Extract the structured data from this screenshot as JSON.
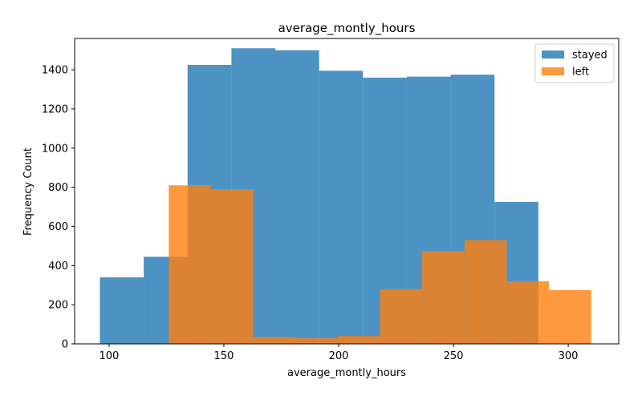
{
  "chart_data": {
    "type": "histogram",
    "title": "average_montly_hours",
    "xlabel": "average_montly_hours",
    "ylabel": "Frequency Count",
    "xlim": [
      85,
      322
    ],
    "ylim": [
      0,
      1560
    ],
    "xticks": [
      100,
      150,
      200,
      250,
      300
    ],
    "yticks": [
      0,
      200,
      400,
      600,
      800,
      1000,
      1200,
      1400
    ],
    "grid": false,
    "legend_position": "top-right",
    "series": [
      {
        "name": "stayed",
        "color": "#1f77b4",
        "opacity": 0.8,
        "bins": [
          96,
          115.1,
          134.2,
          153.3,
          172.4,
          191.5,
          210.6,
          229.7,
          248.8,
          267.9,
          287
        ],
        "values": [
          340,
          445,
          1425,
          1510,
          1500,
          1395,
          1360,
          1365,
          1375,
          725
        ]
      },
      {
        "name": "left",
        "color": "#ff7f0e",
        "opacity": 0.8,
        "bins": [
          126,
          144.4,
          162.8,
          181.2,
          199.6,
          218,
          236.4,
          254.8,
          273.2,
          291.6,
          310
        ],
        "values": [
          810,
          790,
          35,
          30,
          40,
          280,
          475,
          530,
          320,
          275
        ]
      }
    ]
  }
}
